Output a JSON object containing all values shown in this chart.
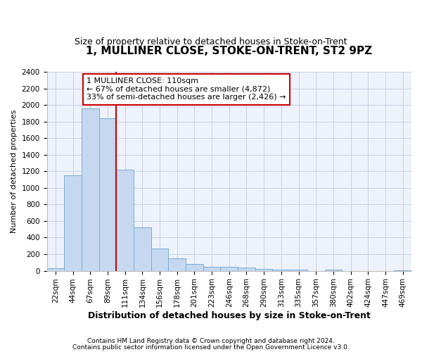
{
  "title": "1, MULLINER CLOSE, STOKE-ON-TRENT, ST2 9PZ",
  "subtitle": "Size of property relative to detached houses in Stoke-on-Trent",
  "xlabel": "Distribution of detached houses by size in Stoke-on-Trent",
  "ylabel": "Number of detached properties",
  "categories": [
    "22sqm",
    "44sqm",
    "67sqm",
    "89sqm",
    "111sqm",
    "134sqm",
    "156sqm",
    "178sqm",
    "201sqm",
    "223sqm",
    "246sqm",
    "268sqm",
    "290sqm",
    "313sqm",
    "335sqm",
    "357sqm",
    "380sqm",
    "402sqm",
    "424sqm",
    "447sqm",
    "469sqm"
  ],
  "values": [
    30,
    1150,
    1960,
    1840,
    1220,
    520,
    265,
    150,
    80,
    50,
    45,
    40,
    25,
    15,
    10,
    0,
    15,
    0,
    0,
    0,
    5
  ],
  "bar_color": "#c5d8f0",
  "bar_edge_color": "#7aadd4",
  "bg_color": "#eef2fb",
  "grid_color": "#c8d0e0",
  "vline_color": "#cc0000",
  "annotation_line1": "1 MULLINER CLOSE: 110sqm",
  "annotation_line2": "← 67% of detached houses are smaller (4,872)",
  "annotation_line3": "33% of semi-detached houses are larger (2,426) →",
  "annotation_box_color": "#cc0000",
  "ylim": [
    0,
    2400
  ],
  "yticks": [
    0,
    200,
    400,
    600,
    800,
    1000,
    1200,
    1400,
    1600,
    1800,
    2000,
    2200,
    2400
  ],
  "footnote1": "Contains HM Land Registry data © Crown copyright and database right 2024.",
  "footnote2": "Contains public sector information licensed under the Open Government Licence v3.0.",
  "title_fontsize": 11,
  "subtitle_fontsize": 9,
  "xlabel_fontsize": 9,
  "ylabel_fontsize": 8,
  "tick_fontsize": 7.5,
  "annotation_fontsize": 8,
  "footnote_fontsize": 6.5
}
